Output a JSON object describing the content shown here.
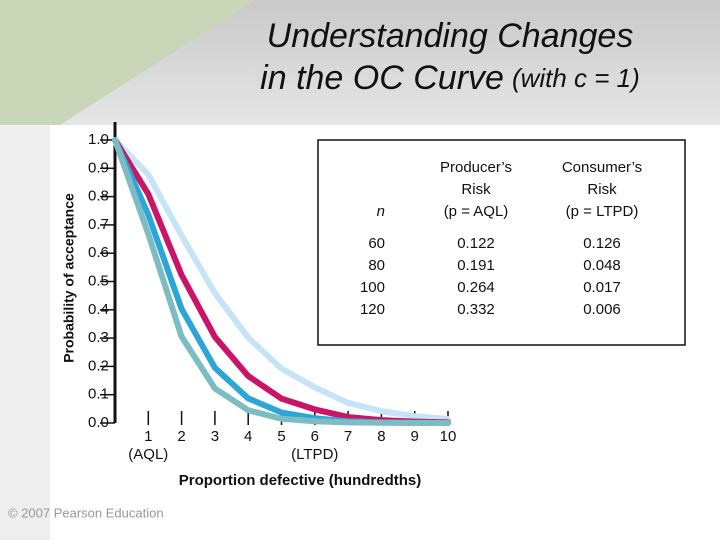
{
  "chart_data": {
    "type": "line",
    "title": [
      "Understanding Changes",
      "in the OC Curve"
    ],
    "title_note": "(with c = 1)",
    "x_label": "Proportion defective (hundredths)",
    "y_label": "Probability of acceptance",
    "x": [
      0,
      1,
      2,
      3,
      4,
      5,
      6,
      7,
      8,
      9,
      10
    ],
    "xlim": [
      0,
      10
    ],
    "xticks": [
      1,
      2,
      3,
      4,
      5,
      6,
      7,
      8,
      9,
      10
    ],
    "x_annotations": [
      {
        "x": 1,
        "label": "(AQL)"
      },
      {
        "x": 6,
        "label": "(LTPD)"
      }
    ],
    "ylim": [
      0,
      1
    ],
    "yticks": [
      {
        "value": 0,
        "label": "0.0"
      },
      0.1,
      0.2,
      0.3,
      0.4,
      0.5,
      0.6,
      0.7,
      0.8,
      0.9,
      {
        "value": 1,
        "label": "1.0"
      }
    ],
    "series": [
      {
        "color": "#c6e4f7",
        "values": [
          1,
          0.878,
          0.662,
          0.459,
          0.302,
          0.192,
          0.126,
          0.071,
          0.042,
          0.024,
          0.014
        ]
      },
      {
        "color": "#cc1466",
        "values": [
          1,
          0.809,
          0.523,
          0.304,
          0.166,
          0.086,
          0.048,
          0.021,
          0.01,
          0.005,
          0.002
        ]
      },
      {
        "color": "#2ca6d6",
        "values": [
          1,
          0.736,
          0.403,
          0.195,
          0.087,
          0.037,
          0.017,
          0.006,
          0.002,
          0.001,
          0.0
        ]
      },
      {
        "color": "#7dbcc3",
        "values": [
          1,
          0.668,
          0.305,
          0.122,
          0.045,
          0.015,
          0.006,
          0.002,
          0.001,
          0.0,
          0.0
        ]
      }
    ]
  },
  "table": {
    "header": [
      [
        "n"
      ],
      [
        "Producer’s",
        "Risk",
        "(p = AQL)"
      ],
      [
        "Consumer’s",
        "Risk",
        "(p = LTPD)"
      ]
    ],
    "rows": [
      [
        "60",
        "0.122",
        "0.126"
      ],
      [
        "80",
        "0.191",
        "0.048"
      ],
      [
        "100",
        "0.264",
        "0.017"
      ],
      [
        "120",
        "0.332",
        "0.006"
      ]
    ]
  },
  "footer": "© 2007 Pearson Education"
}
